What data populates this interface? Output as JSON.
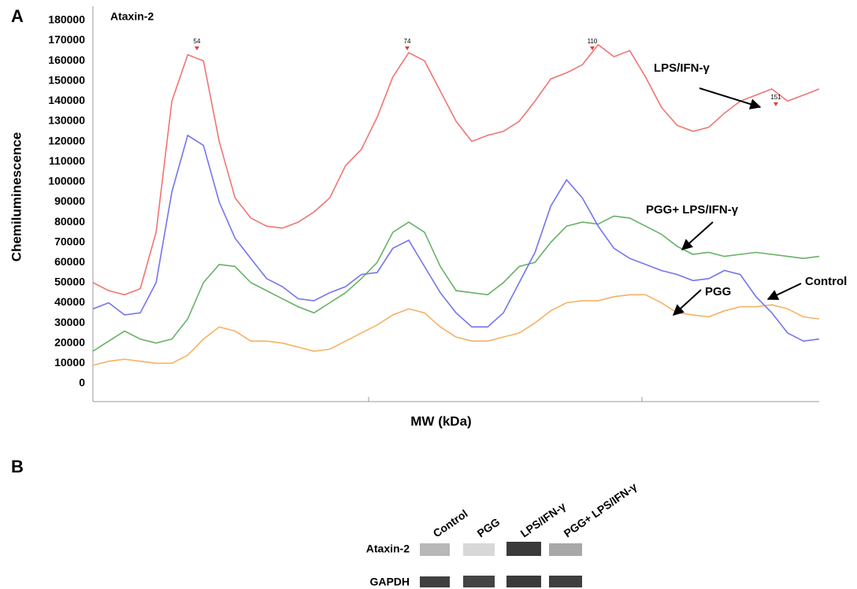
{
  "chart_data": {
    "type": "line",
    "panel_label": "A",
    "title": "Ataxin-2",
    "y_label": "Chemiluminescence",
    "x_label": "MW (kDa)",
    "ylim": [
      -9000,
      187000
    ],
    "yticks": [
      0,
      10000,
      20000,
      30000,
      40000,
      50000,
      60000,
      70000,
      80000,
      90000,
      100000,
      110000,
      120000,
      130000,
      140000,
      150000,
      160000,
      170000,
      180000
    ],
    "peak_labels": [
      "54",
      "74",
      "110",
      "151"
    ],
    "series": [
      {
        "name": "LPS/IFN-γ",
        "color": "#f07474",
        "values": [
          50000,
          46000,
          44000,
          47000,
          75000,
          140000,
          163000,
          160000,
          120000,
          92000,
          82000,
          78000,
          77000,
          80000,
          85000,
          92000,
          108000,
          116000,
          132000,
          152000,
          164000,
          160000,
          145000,
          130000,
          120000,
          123000,
          125000,
          130000,
          140000,
          151000,
          154000,
          158000,
          168000,
          162000,
          165000,
          152000,
          137000,
          128000,
          125000,
          127000,
          134000,
          140000,
          143000,
          146000,
          140000,
          143000,
          146000
        ]
      },
      {
        "name": "PGG+ LPS/IFN-γ",
        "color": "#66b266",
        "values": [
          16000,
          21000,
          26000,
          22000,
          20000,
          22000,
          32000,
          50000,
          59000,
          58000,
          50000,
          46000,
          42000,
          38000,
          35000,
          40000,
          45000,
          52000,
          60000,
          75000,
          80000,
          75000,
          58000,
          46000,
          45000,
          44000,
          50000,
          58000,
          60000,
          70000,
          78000,
          80000,
          79000,
          83000,
          82000,
          78000,
          74000,
          68000,
          64000,
          65000,
          63000,
          64000,
          65000,
          64000,
          63000,
          62000,
          63000
        ]
      },
      {
        "name": "PGG",
        "color": "#f5b266",
        "values": [
          9000,
          11000,
          12000,
          11000,
          10000,
          10000,
          14000,
          22000,
          28000,
          26000,
          21000,
          21000,
          20000,
          18000,
          16000,
          17000,
          21000,
          25000,
          29000,
          34000,
          37000,
          35000,
          28000,
          23000,
          21000,
          21000,
          23000,
          25000,
          30000,
          36000,
          40000,
          41000,
          41000,
          43000,
          44000,
          44000,
          40000,
          35000,
          34000,
          33000,
          36000,
          38000,
          38000,
          39000,
          37000,
          33000,
          32000
        ]
      },
      {
        "name": "Control",
        "color": "#7474f0",
        "values": [
          37000,
          40000,
          34000,
          35000,
          50000,
          95000,
          123000,
          118000,
          90000,
          72000,
          62000,
          52000,
          48000,
          42000,
          41000,
          45000,
          48000,
          54000,
          55000,
          67000,
          71000,
          58000,
          45000,
          35000,
          28000,
          28000,
          35000,
          50000,
          65000,
          88000,
          101000,
          92000,
          78000,
          67000,
          62000,
          59000,
          56000,
          54000,
          51000,
          52000,
          56000,
          54000,
          43000,
          35000,
          25000,
          21000,
          22000
        ]
      }
    ]
  },
  "blot": {
    "panel_label": "B",
    "lanes": [
      "Control",
      "PGG",
      "LPS/IFN-γ",
      "PGG+ LPS/IFN-γ"
    ],
    "rows": [
      "Ataxin-2",
      "GAPDH"
    ]
  }
}
